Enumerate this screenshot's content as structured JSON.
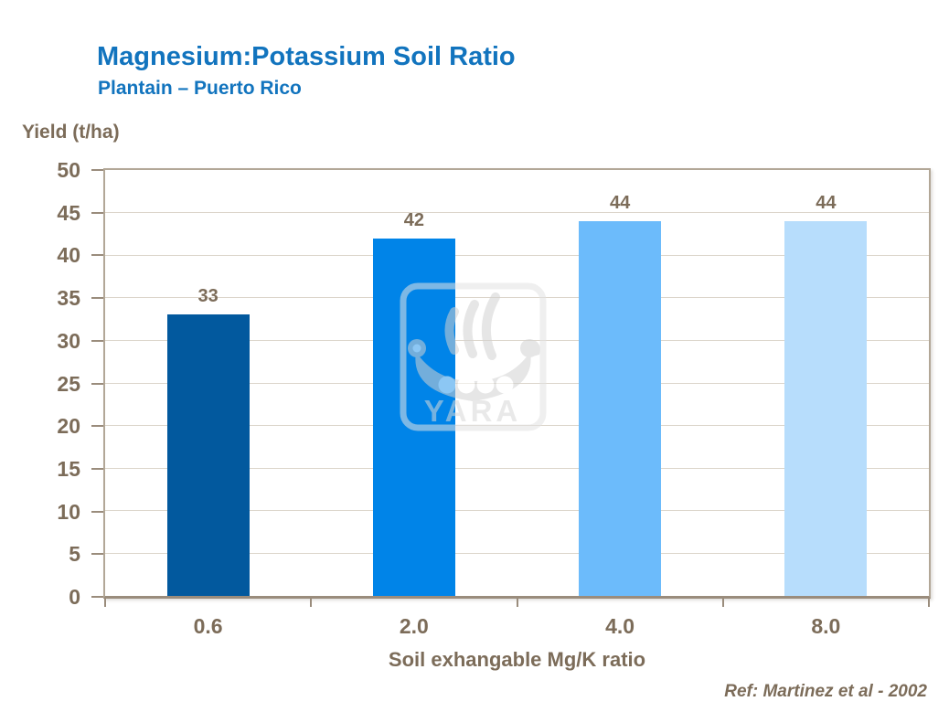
{
  "header": {
    "title": "Magnesium:Potassium Soil Ratio",
    "subtitle": "Plantain – Puerto Rico"
  },
  "footer": {
    "reference": "Ref: Martinez et al - 2002"
  },
  "watermark": {
    "brand": "YARA"
  },
  "colors": {
    "title_blue": "#1274BE",
    "label_brown": "#7C6C59",
    "axis_line": "#9A8C7C",
    "plot_border": "#B2A797",
    "gridline": "#DCD5CB",
    "bar_colors": [
      "#02599E",
      "#0084E8",
      "#6CBBFB",
      "#B7DDFC"
    ]
  },
  "chart_data": {
    "type": "bar",
    "title": "Magnesium:Potassium Soil Ratio",
    "subtitle": "Plantain – Puerto Rico",
    "categories": [
      "0.6",
      "2.0",
      "4.0",
      "8.0"
    ],
    "values": [
      33,
      42,
      44,
      44
    ],
    "data_labels": [
      33,
      42,
      44,
      44
    ],
    "bar_colors": [
      "#02599E",
      "#0084E8",
      "#6CBBFB",
      "#B7DDFC"
    ],
    "xlabel": "Soil exhangable Mg/K ratio",
    "ylabel": "Yield (t/ha)",
    "ylim": [
      0,
      50
    ],
    "yticks": [
      0,
      5,
      10,
      15,
      20,
      25,
      30,
      35,
      40,
      45,
      50
    ],
    "grid": true,
    "legend": false,
    "reference": "Ref: Martinez et al - 2002"
  }
}
